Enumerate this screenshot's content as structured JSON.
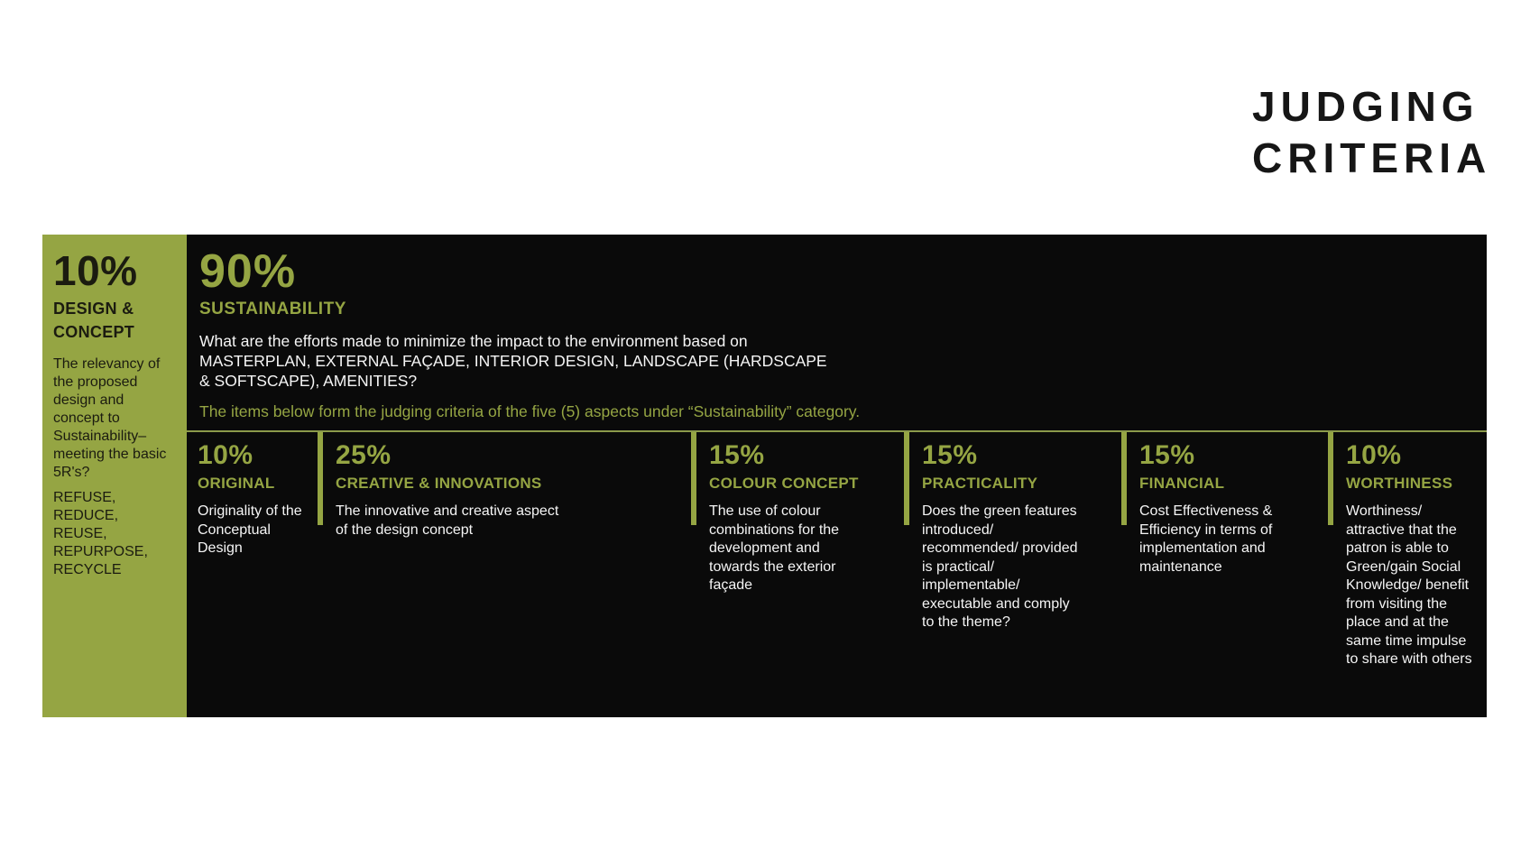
{
  "page": {
    "title_line1": "JUDGING",
    "title_line2": "CRITERIA"
  },
  "colors": {
    "accent_green": "#95a543",
    "divider_olive": "#8b9a4b",
    "panel_black": "#0a0a0a",
    "title_black": "#161616",
    "body_white": "#f5f5f5"
  },
  "sidebar": {
    "pct": "10%",
    "label": "DESIGN & CONCEPT",
    "desc": "The relevancy of the proposed design and concept to Sustainability–meeting the basic 5R's?",
    "five_rs": "REFUSE,\nREDUCE,\nREUSE,\nREPURPOSE,\nRECYCLE"
  },
  "main": {
    "pct": "90%",
    "label": "SUSTAINABILITY",
    "desc": "What are the efforts made to minimize the impact to the environment based on MASTERPLAN, EXTERNAL FAÇADE, INTERIOR DESIGN, LANDSCAPE (HARDSCAPE & SOFTSCAPE), AMENITIES?",
    "note": "The items below form the judging criteria of the five (5) aspects under “Sustainability” category.",
    "columns": [
      {
        "pct": "10%",
        "label": "ORIGINAL",
        "desc": "Originality of the Conceptual Design"
      },
      {
        "pct": "25%",
        "label": "CREATIVE & INNOVATIONS",
        "desc": "The innovative and creative aspect of the design concept"
      },
      {
        "pct": "15%",
        "label": "COLOUR CONCEPT",
        "desc": "The use of colour combinations for the development and towards the exterior façade"
      },
      {
        "pct": "15%",
        "label": "PRACTICALITY",
        "desc": "Does the green features introduced/ recommended/ provided is practical/ implementable/ executable and comply to the theme?"
      },
      {
        "pct": "15%",
        "label": "FINANCIAL",
        "desc": "Cost Effectiveness & Efficiency in terms of implementation and maintenance"
      },
      {
        "pct": "10%",
        "label": "WORTHINESS",
        "desc": "Worthiness/ attractive that the patron is able to Green/gain Social Knowledge/ benefit from visiting the place and at the same time impulse to share with others"
      }
    ]
  }
}
